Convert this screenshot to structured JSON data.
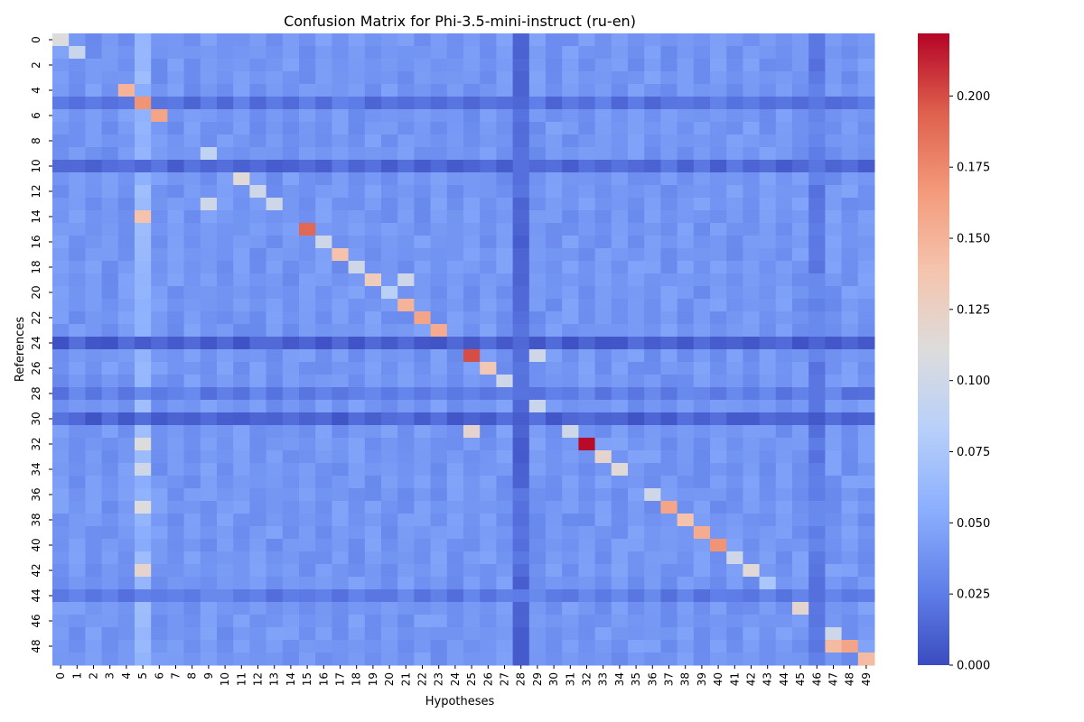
{
  "chart_data": {
    "type": "heatmap",
    "title": "Confusion Matrix for Phi-3.5-mini-instruct (ru-en)",
    "xlabel": "Hypotheses",
    "ylabel": "References",
    "x_ticks": [
      "0",
      "1",
      "2",
      "3",
      "4",
      "5",
      "6",
      "7",
      "8",
      "9",
      "10",
      "11",
      "12",
      "13",
      "14",
      "15",
      "16",
      "17",
      "18",
      "19",
      "20",
      "21",
      "22",
      "23",
      "24",
      "25",
      "26",
      "27",
      "28",
      "29",
      "30",
      "31",
      "32",
      "33",
      "34",
      "35",
      "36",
      "37",
      "38",
      "39",
      "40",
      "41",
      "42",
      "43",
      "44",
      "45",
      "46",
      "47",
      "48",
      "49"
    ],
    "y_ticks": [
      "0",
      "2",
      "4",
      "6",
      "8",
      "10",
      "12",
      "14",
      "16",
      "18",
      "20",
      "22",
      "24",
      "26",
      "28",
      "30",
      "32",
      "34",
      "36",
      "38",
      "40",
      "42",
      "44",
      "46",
      "48"
    ],
    "size": 50,
    "background_level": 0.04,
    "row_levels": {
      "5": 0.02,
      "10": 0.015,
      "24": 0.01,
      "28": 0.025,
      "30": 0.012,
      "44": 0.025
    },
    "column_levels": {
      "5": 0.06,
      "28": 0.015,
      "46": 0.025
    },
    "highlights": [
      {
        "row": 0,
        "col": 0,
        "value": 0.11
      },
      {
        "row": 1,
        "col": 1,
        "value": 0.095
      },
      {
        "row": 4,
        "col": 4,
        "value": 0.15
      },
      {
        "row": 5,
        "col": 5,
        "value": 0.17
      },
      {
        "row": 6,
        "col": 6,
        "value": 0.16
      },
      {
        "row": 9,
        "col": 9,
        "value": 0.09
      },
      {
        "row": 11,
        "col": 11,
        "value": 0.115
      },
      {
        "row": 12,
        "col": 12,
        "value": 0.1
      },
      {
        "row": 13,
        "col": 9,
        "value": 0.1
      },
      {
        "row": 13,
        "col": 13,
        "value": 0.1
      },
      {
        "row": 14,
        "col": 5,
        "value": 0.14
      },
      {
        "row": 15,
        "col": 15,
        "value": 0.19
      },
      {
        "row": 16,
        "col": 16,
        "value": 0.1
      },
      {
        "row": 17,
        "col": 17,
        "value": 0.14
      },
      {
        "row": 18,
        "col": 18,
        "value": 0.1
      },
      {
        "row": 19,
        "col": 19,
        "value": 0.13
      },
      {
        "row": 19,
        "col": 21,
        "value": 0.1
      },
      {
        "row": 20,
        "col": 20,
        "value": 0.085
      },
      {
        "row": 21,
        "col": 21,
        "value": 0.15
      },
      {
        "row": 22,
        "col": 22,
        "value": 0.16
      },
      {
        "row": 23,
        "col": 23,
        "value": 0.155
      },
      {
        "row": 25,
        "col": 25,
        "value": 0.2
      },
      {
        "row": 25,
        "col": 29,
        "value": 0.1
      },
      {
        "row": 26,
        "col": 26,
        "value": 0.135
      },
      {
        "row": 27,
        "col": 27,
        "value": 0.1
      },
      {
        "row": 29,
        "col": 29,
        "value": 0.095
      },
      {
        "row": 31,
        "col": 25,
        "value": 0.12
      },
      {
        "row": 31,
        "col": 31,
        "value": 0.1
      },
      {
        "row": 32,
        "col": 32,
        "value": 0.22
      },
      {
        "row": 32,
        "col": 5,
        "value": 0.11
      },
      {
        "row": 33,
        "col": 33,
        "value": 0.12
      },
      {
        "row": 34,
        "col": 34,
        "value": 0.115
      },
      {
        "row": 34,
        "col": 5,
        "value": 0.1
      },
      {
        "row": 36,
        "col": 36,
        "value": 0.1
      },
      {
        "row": 37,
        "col": 5,
        "value": 0.11
      },
      {
        "row": 37,
        "col": 37,
        "value": 0.16
      },
      {
        "row": 38,
        "col": 38,
        "value": 0.14
      },
      {
        "row": 39,
        "col": 39,
        "value": 0.155
      },
      {
        "row": 40,
        "col": 40,
        "value": 0.17
      },
      {
        "row": 41,
        "col": 41,
        "value": 0.1
      },
      {
        "row": 42,
        "col": 42,
        "value": 0.115
      },
      {
        "row": 42,
        "col": 5,
        "value": 0.12
      },
      {
        "row": 43,
        "col": 43,
        "value": 0.075
      },
      {
        "row": 45,
        "col": 45,
        "value": 0.12
      },
      {
        "row": 47,
        "col": 47,
        "value": 0.1
      },
      {
        "row": 48,
        "col": 47,
        "value": 0.145
      },
      {
        "row": 48,
        "col": 48,
        "value": 0.16
      },
      {
        "row": 49,
        "col": 49,
        "value": 0.145
      }
    ],
    "color_scale": {
      "min": 0.0,
      "max": 0.222,
      "ticks": [
        "0.000",
        "0.025",
        "0.050",
        "0.075",
        "0.100",
        "0.125",
        "0.150",
        "0.175",
        "0.200"
      ],
      "tick_values": [
        0.0,
        0.025,
        0.05,
        0.075,
        0.1,
        0.125,
        0.15,
        0.175,
        0.2
      ],
      "colormap": "coolwarm",
      "stops": [
        "#3b4cc0",
        "#6282ea",
        "#8db0fe",
        "#b8d0f9",
        "#dddcdc",
        "#f5c4ad",
        "#f49a7b",
        "#de604d",
        "#b40426"
      ]
    }
  }
}
